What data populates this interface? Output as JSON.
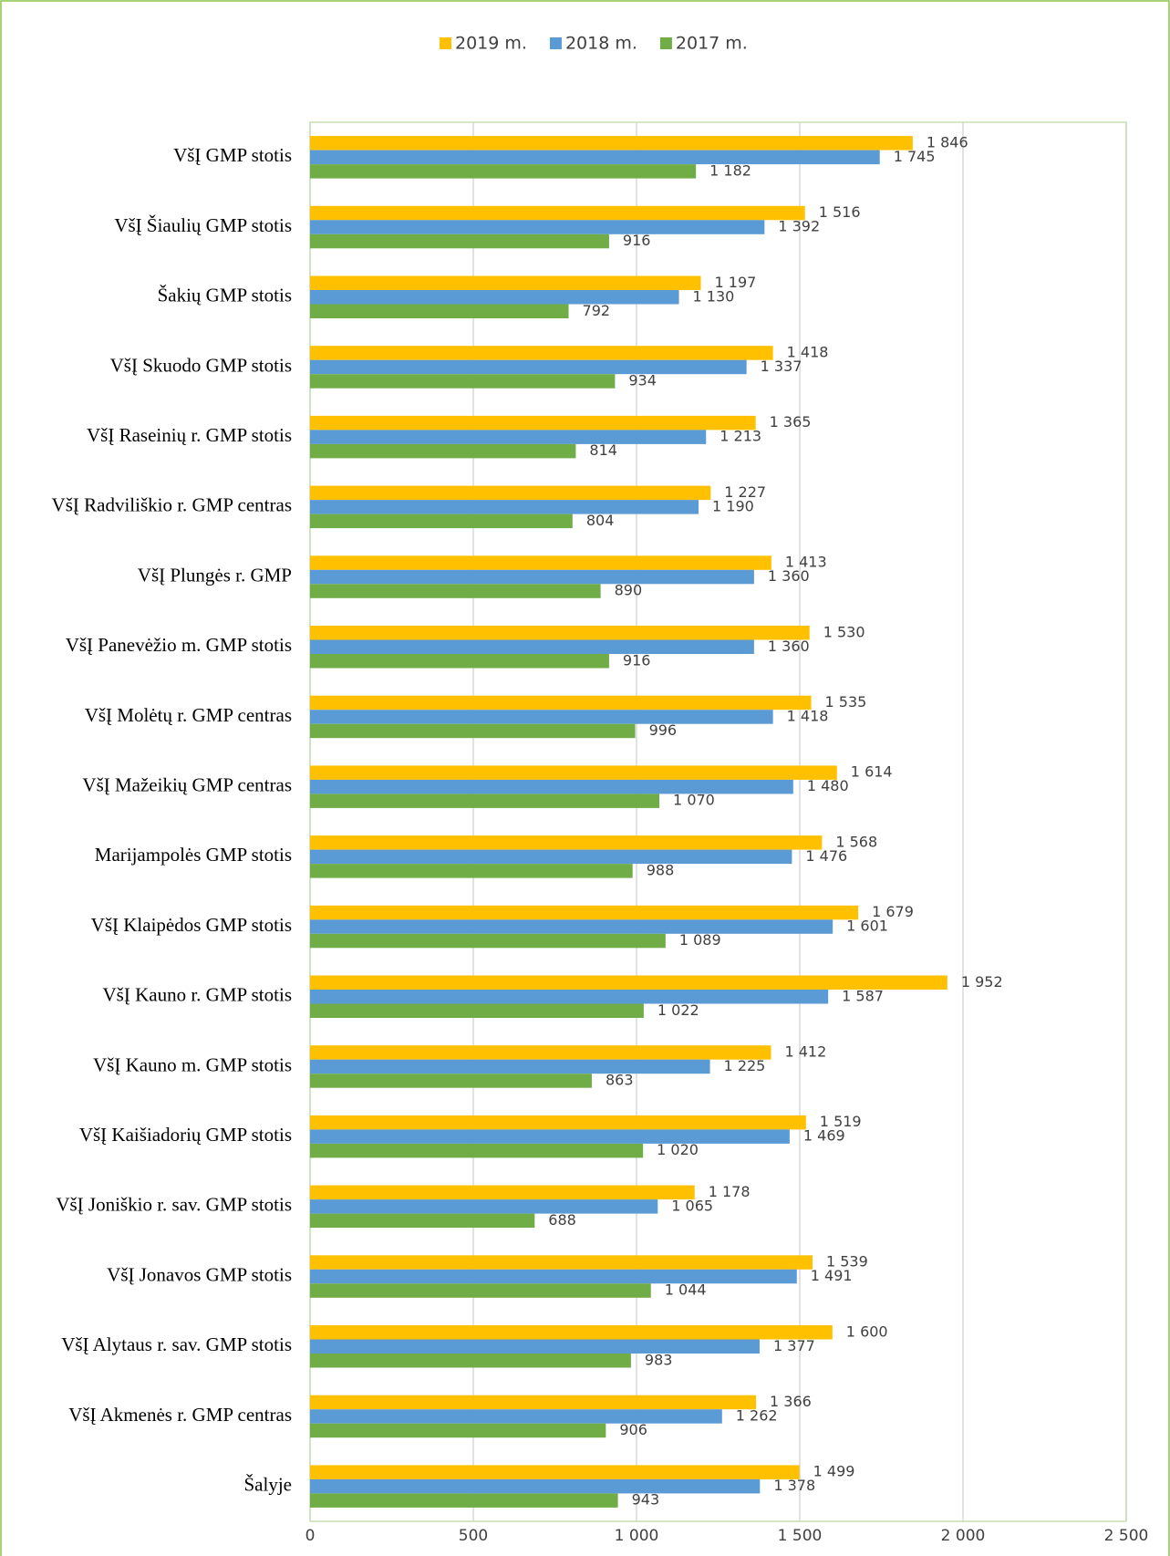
{
  "chart_data": {
    "type": "bar",
    "orientation": "horizontal",
    "categories": [
      "VšĮ GMP stotis",
      "VšĮ Šiaulių GMP stotis",
      "Šakių GMP stotis",
      "VšĮ Skuodo GMP stotis",
      "VšĮ Raseinių r. GMP stotis",
      "VšĮ Radviliškio r. GMP centras",
      "VšĮ Plungės r. GMP",
      "VšĮ Panevėžio m. GMP stotis",
      "VšĮ Molėtų r. GMP centras",
      "VšĮ Mažeikių GMP centras",
      "Marijampolės GMP stotis",
      "VšĮ Klaipėdos GMP stotis",
      "VšĮ Kauno r. GMP stotis",
      "VšĮ Kauno m. GMP stotis",
      "VšĮ Kaišiadorių GMP stotis",
      "VšĮ Joniškio r. sav. GMP stotis",
      "VšĮ Jonavos GMP stotis",
      "VšĮ Alytaus r. sav. GMP stotis",
      "VšĮ Akmenės r. GMP centras",
      "Šalyje"
    ],
    "series": [
      {
        "name": "2019 m.",
        "color": "#ffc000",
        "values": [
          1846,
          1516,
          1197,
          1418,
          1365,
          1227,
          1413,
          1530,
          1535,
          1614,
          1568,
          1679,
          1952,
          1412,
          1519,
          1178,
          1539,
          1600,
          1366,
          1499
        ],
        "value_labels": [
          "1 846",
          "1 516",
          "1 197",
          "1 418",
          "1 365",
          "1 227",
          "1 413",
          "1 530",
          "1 535",
          "1 614",
          "1 568",
          "1 679",
          "1 952",
          "1 412",
          "1 519",
          "1 178",
          "1 539",
          "1 600",
          "1 366",
          "1 499"
        ]
      },
      {
        "name": "2018 m.",
        "color": "#5b9bd5",
        "values": [
          1745,
          1392,
          1130,
          1337,
          1213,
          1190,
          1360,
          1360,
          1418,
          1480,
          1476,
          1601,
          1587,
          1225,
          1469,
          1065,
          1491,
          1377,
          1262,
          1378
        ],
        "value_labels": [
          "1 745",
          "1 392",
          "1 130",
          "1 337",
          "1 213",
          "1 190",
          "1 360",
          "1 360",
          "1 418",
          "1 480",
          "1 476",
          "1 601",
          "1 587",
          "1 225",
          "1 469",
          "1 065",
          "1 491",
          "1 377",
          "1 262",
          "1 378"
        ]
      },
      {
        "name": "2017 m.",
        "color": "#70ad47",
        "values": [
          1182,
          916,
          792,
          934,
          814,
          804,
          890,
          916,
          996,
          1070,
          988,
          1089,
          1022,
          863,
          1020,
          688,
          1044,
          983,
          906,
          943
        ],
        "value_labels": [
          "1 182",
          "916",
          "792",
          "934",
          "814",
          "804",
          "890",
          "916",
          "996",
          "1 070",
          "988",
          "1 089",
          "1 022",
          "863",
          "1 020",
          "688",
          "1 044",
          "983",
          "906",
          "943"
        ]
      }
    ],
    "xlim": [
      0,
      2500
    ],
    "xticks": [
      0,
      500,
      {
        "value": 1000,
        "label": "1 000"
      },
      {
        "value": 1500,
        "label": "1 500"
      },
      {
        "value": 2000,
        "label": "2 000"
      },
      {
        "value": 2500,
        "label": "2 500"
      }
    ],
    "grid": true,
    "legend": "top"
  }
}
